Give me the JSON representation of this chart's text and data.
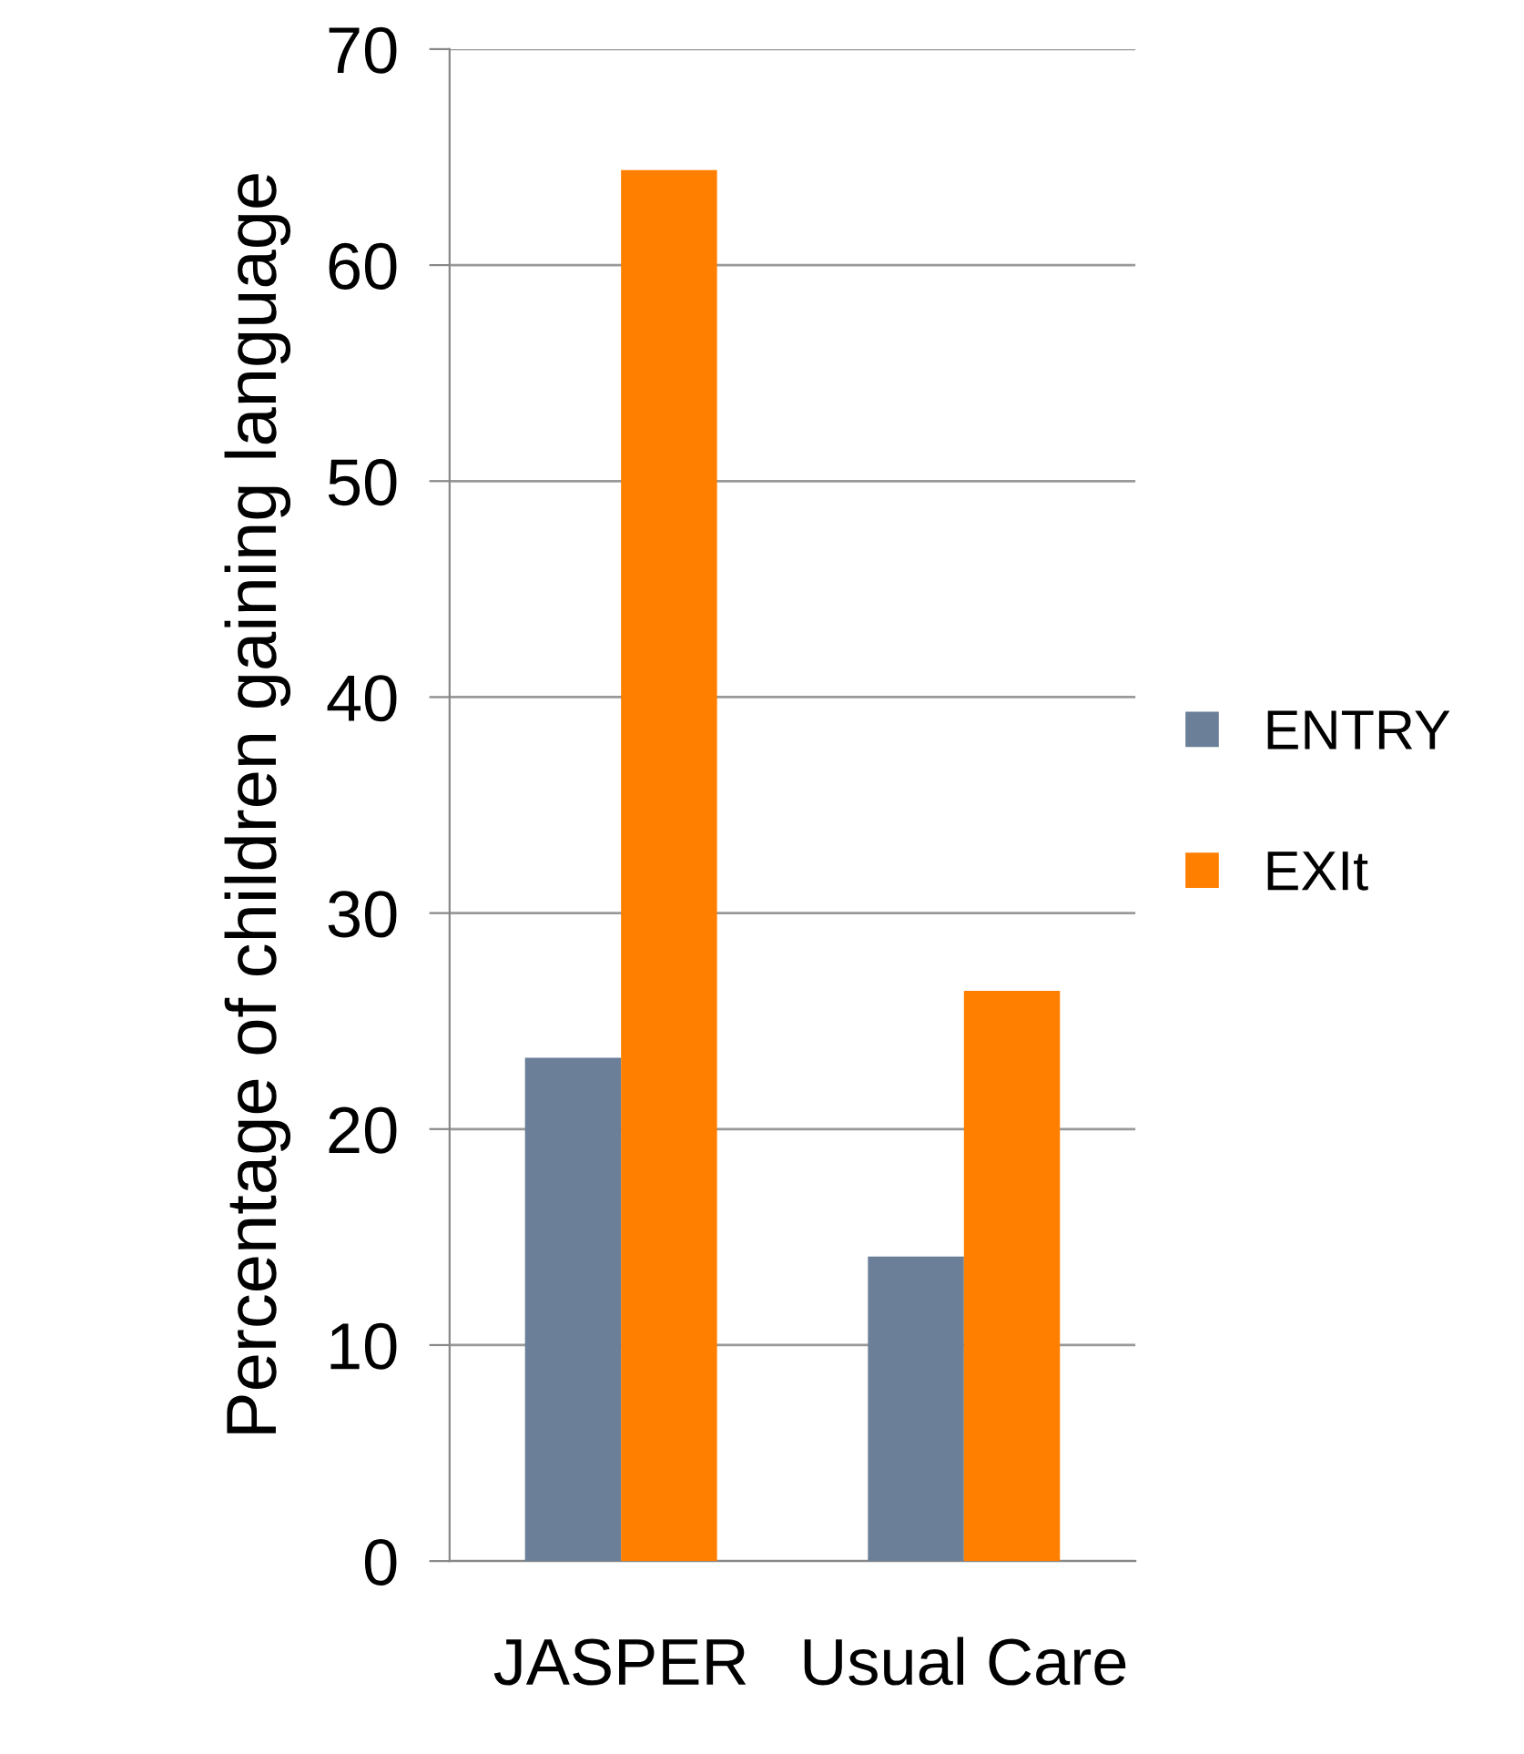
{
  "chart_data": {
    "type": "bar",
    "ylabel": "Percentage of children gaining language",
    "categories": [
      "JASPER",
      "Usual Care"
    ],
    "series": [
      {
        "name": "ENTRY",
        "color": "#6b7f99",
        "values": [
          23.3,
          14.1
        ]
      },
      {
        "name": "EXIt",
        "color": "#ff7f00",
        "values": [
          64.4,
          26.4
        ]
      }
    ],
    "ylim": [
      0,
      70
    ],
    "yticks": [
      0,
      10,
      20,
      30,
      40,
      50,
      60,
      70
    ],
    "grid": "y",
    "legend": "right"
  }
}
